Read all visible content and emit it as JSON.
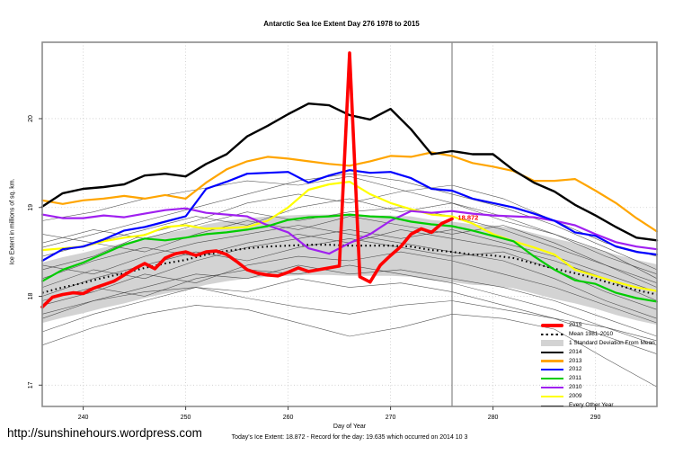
{
  "page": {
    "title": "Antarctic Sea Ice Extent Day 276 1978 to 2015",
    "ylabel": "Ice Extent in millions of sq. km.",
    "xlabel": "Day of Year",
    "footnote": "Today's Ice Extent: 18.872  - Record for the day: 19.635 which occurred on 2014 10 3",
    "url_text": "http://sunshinehours.wordpress.com",
    "annotation": {
      "text": "18.872",
      "day": 276.3,
      "value": 18.88,
      "color": "#FF0000"
    }
  },
  "chart_data": {
    "type": "line",
    "title": "Antarctic Sea Ice Extent Day 276 1978 to 2015",
    "xlabel": "Day of Year",
    "ylabel": "Ice Extent in millions of sq. km.",
    "xlim": [
      236,
      296
    ],
    "ylim": [
      16.76,
      20.86
    ],
    "x_ticks": [
      240,
      250,
      260,
      270,
      280,
      290
    ],
    "y_ticks": [
      17,
      18,
      19,
      20
    ],
    "grid": "dotted",
    "legend_position": "bottom-right",
    "today_day": 276,
    "today_value": 18.872,
    "record_value": 19.635,
    "record_date": "2014 10 3",
    "days_main": [
      236,
      238,
      240,
      242,
      244,
      246,
      248,
      250,
      252,
      254,
      256,
      258,
      260,
      262,
      264,
      266,
      268,
      270,
      272,
      274,
      276,
      278,
      280,
      282,
      284,
      286,
      288,
      290,
      292,
      294,
      296
    ],
    "mean_1981_2010": [
      18.04,
      18.1,
      18.15,
      18.21,
      18.26,
      18.32,
      18.37,
      18.41,
      18.47,
      18.51,
      18.54,
      18.56,
      18.57,
      18.58,
      18.58,
      18.57,
      18.57,
      18.57,
      18.56,
      18.52,
      18.5,
      18.47,
      18.46,
      18.43,
      18.37,
      18.31,
      18.26,
      18.2,
      18.13,
      18.07,
      18.02
    ],
    "band": {
      "name": "1 Standard Deviation From Mean",
      "color": "#D3D3D3",
      "top": [
        18.38,
        18.44,
        18.49,
        18.55,
        18.6,
        18.66,
        18.71,
        18.75,
        18.81,
        18.85,
        18.88,
        18.9,
        18.91,
        18.92,
        18.92,
        18.91,
        18.91,
        18.91,
        18.9,
        18.86,
        18.84,
        18.81,
        18.8,
        18.77,
        18.71,
        18.65,
        18.6,
        18.54,
        18.47,
        18.41,
        18.36
      ],
      "bottom": [
        17.7,
        17.76,
        17.81,
        17.87,
        17.92,
        17.98,
        18.03,
        18.07,
        18.13,
        18.17,
        18.2,
        18.22,
        18.23,
        18.24,
        18.24,
        18.23,
        18.23,
        18.23,
        18.22,
        18.18,
        18.16,
        18.13,
        18.12,
        18.09,
        18.03,
        17.97,
        17.92,
        17.86,
        17.79,
        17.73,
        17.68
      ]
    },
    "years": [
      {
        "name": "2009",
        "color": "#FFFF00",
        "values": [
          18.52,
          18.54,
          18.56,
          18.62,
          18.66,
          18.69,
          18.78,
          18.8,
          18.76,
          18.77,
          18.78,
          18.85,
          19.0,
          19.2,
          19.26,
          19.29,
          19.15,
          19.05,
          18.98,
          18.92,
          18.9,
          18.82,
          18.7,
          18.62,
          18.55,
          18.47,
          18.3,
          18.23,
          18.16,
          18.1,
          18.06
        ]
      },
      {
        "name": "2010",
        "color": "#A020F0",
        "values": [
          18.92,
          18.88,
          18.88,
          18.91,
          18.89,
          18.93,
          18.97,
          18.99,
          18.94,
          18.92,
          18.9,
          18.8,
          18.72,
          18.54,
          18.48,
          18.6,
          18.7,
          18.85,
          18.96,
          18.94,
          18.96,
          18.93,
          18.91,
          18.9,
          18.89,
          18.85,
          18.8,
          18.7,
          18.61,
          18.56,
          18.53
        ]
      },
      {
        "name": "2011",
        "color": "#00CC00",
        "values": [
          18.17,
          18.3,
          18.38,
          18.48,
          18.58,
          18.65,
          18.63,
          18.66,
          18.7,
          18.72,
          18.75,
          18.79,
          18.86,
          18.89,
          18.9,
          18.92,
          18.9,
          18.89,
          18.84,
          18.81,
          18.79,
          18.74,
          18.68,
          18.62,
          18.45,
          18.3,
          18.18,
          18.14,
          18.04,
          17.98,
          17.94
        ]
      },
      {
        "name": "2012",
        "color": "#0000FF",
        "values": [
          18.4,
          18.53,
          18.56,
          18.64,
          18.74,
          18.78,
          18.84,
          18.9,
          19.21,
          19.29,
          19.38,
          19.39,
          19.4,
          19.28,
          19.36,
          19.42,
          19.39,
          19.4,
          19.33,
          19.21,
          19.19,
          19.1,
          19.05,
          19.0,
          18.93,
          18.85,
          18.72,
          18.68,
          18.56,
          18.5,
          18.47
        ]
      },
      {
        "name": "2013",
        "color": "#FFA500",
        "values": [
          19.08,
          19.04,
          19.08,
          19.1,
          19.13,
          19.1,
          19.14,
          19.1,
          19.28,
          19.43,
          19.52,
          19.57,
          19.55,
          19.52,
          19.49,
          19.47,
          19.52,
          19.58,
          19.57,
          19.62,
          19.58,
          19.5,
          19.46,
          19.41,
          19.3,
          19.3,
          19.32,
          19.19,
          19.05,
          18.88,
          18.73
        ]
      },
      {
        "name": "2014",
        "color": "#000000",
        "values": [
          19.01,
          19.16,
          19.21,
          19.23,
          19.26,
          19.36,
          19.38,
          19.35,
          19.49,
          19.6,
          19.8,
          19.92,
          20.05,
          20.17,
          20.15,
          20.04,
          19.99,
          20.11,
          19.88,
          19.6,
          19.635,
          19.6,
          19.6,
          19.42,
          19.28,
          19.18,
          19.03,
          18.91,
          18.78,
          18.66,
          18.63
        ]
      }
    ],
    "y2015": {
      "name": "2015",
      "color": "#FF0000",
      "days": [
        236,
        237,
        238,
        239,
        240,
        241,
        242,
        243,
        244,
        245,
        246,
        247,
        248,
        249,
        250,
        251,
        252,
        253,
        254,
        255,
        256,
        257,
        258,
        259,
        260,
        261,
        262,
        263,
        264,
        265,
        266,
        267,
        268,
        269,
        270,
        271,
        272,
        273,
        274,
        275,
        276
      ],
      "values": [
        17.88,
        17.99,
        18.02,
        18.04,
        18.03,
        18.09,
        18.13,
        18.17,
        18.24,
        18.31,
        18.37,
        18.31,
        18.43,
        18.48,
        18.5,
        18.46,
        18.5,
        18.51,
        18.47,
        18.39,
        18.3,
        18.26,
        18.24,
        18.23,
        18.27,
        18.32,
        18.28,
        18.3,
        18.32,
        18.34,
        20.74,
        18.22,
        18.16,
        18.35,
        18.46,
        18.56,
        18.7,
        18.76,
        18.72,
        18.82,
        18.872
      ]
    },
    "other_years": {
      "name": "Every Other Year",
      "color": "#3a3a3a",
      "days": [
        236,
        241,
        246,
        251,
        256,
        261,
        266,
        271,
        276,
        281,
        286,
        291,
        296
      ],
      "lines": [
        [
          18.55,
          18.7,
          18.85,
          19.0,
          19.15,
          19.3,
          19.38,
          19.3,
          19.15,
          19.0,
          18.8,
          18.55,
          18.3
        ],
        [
          18.3,
          18.45,
          18.7,
          18.85,
          19.05,
          19.15,
          19.05,
          19.18,
          19.25,
          19.1,
          18.85,
          18.6,
          18.45
        ],
        [
          18.7,
          18.6,
          18.75,
          18.9,
          18.8,
          19.0,
          19.1,
          18.95,
          19.05,
          18.85,
          18.7,
          18.5,
          18.2
        ],
        [
          18.45,
          18.6,
          18.5,
          18.7,
          18.85,
          18.75,
          18.9,
          18.8,
          18.7,
          18.8,
          18.6,
          18.35,
          18.1
        ],
        [
          18.2,
          18.4,
          18.55,
          18.45,
          18.6,
          18.7,
          18.6,
          18.75,
          18.65,
          18.55,
          18.4,
          18.2,
          17.95
        ],
        [
          18.0,
          18.2,
          18.35,
          18.5,
          18.4,
          18.55,
          18.65,
          18.55,
          18.45,
          18.5,
          18.3,
          18.05,
          17.85
        ],
        [
          17.9,
          18.05,
          18.25,
          18.15,
          18.35,
          18.45,
          18.4,
          18.5,
          18.4,
          18.25,
          18.1,
          17.9,
          17.7
        ],
        [
          17.75,
          17.95,
          18.1,
          18.25,
          18.2,
          18.35,
          18.25,
          18.3,
          18.2,
          18.1,
          17.95,
          17.75,
          17.55
        ],
        [
          17.6,
          17.8,
          17.95,
          18.1,
          18.05,
          18.2,
          18.1,
          18.15,
          18.05,
          17.9,
          17.75,
          17.55,
          17.35
        ],
        [
          17.45,
          17.65,
          17.8,
          17.9,
          17.85,
          17.7,
          17.55,
          17.65,
          17.8,
          17.75,
          17.63,
          17.3,
          16.98
        ],
        [
          18.85,
          18.95,
          19.1,
          19.2,
          19.3,
          19.25,
          19.35,
          19.2,
          19.05,
          18.9,
          18.7,
          18.45,
          18.25
        ],
        [
          18.1,
          18.3,
          18.2,
          18.4,
          18.55,
          18.65,
          18.75,
          18.65,
          18.75,
          18.6,
          18.45,
          18.25,
          18.05
        ],
        [
          17.8,
          17.95,
          18.05,
          18.1,
          17.98,
          17.88,
          17.8,
          17.9,
          17.95,
          17.85,
          17.75,
          17.65,
          17.5
        ],
        [
          18.6,
          18.75,
          18.65,
          18.8,
          18.95,
          18.85,
          18.95,
          19.0,
          18.9,
          18.75,
          18.55,
          18.35,
          18.15
        ],
        [
          18.35,
          18.25,
          18.45,
          18.6,
          18.7,
          18.8,
          18.7,
          18.6,
          18.5,
          18.4,
          18.2,
          17.95,
          17.75
        ],
        [
          17.95,
          18.1,
          18.0,
          18.2,
          18.3,
          18.25,
          18.35,
          18.25,
          18.15,
          18.0,
          17.85,
          17.65,
          17.45
        ]
      ]
    },
    "legend": [
      {
        "label": "2015",
        "color": "#FF0000",
        "type": "thick"
      },
      {
        "label": "Mean 1981-2010",
        "color": "#000000",
        "type": "dash"
      },
      {
        "label": "1 Standard Deviation From Mean",
        "color": "#D3D3D3",
        "type": "patch"
      },
      {
        "label": "2014",
        "color": "#000000",
        "type": "line"
      },
      {
        "label": "2013",
        "color": "#FFA500",
        "type": "line"
      },
      {
        "label": "2012",
        "color": "#0000FF",
        "type": "line"
      },
      {
        "label": "2011",
        "color": "#00CC00",
        "type": "line"
      },
      {
        "label": "2010",
        "color": "#A020F0",
        "type": "line"
      },
      {
        "label": "2009",
        "color": "#FFFF00",
        "type": "line"
      },
      {
        "label": "Every Other Year",
        "color": "#3a3a3a",
        "type": "thin"
      }
    ]
  }
}
